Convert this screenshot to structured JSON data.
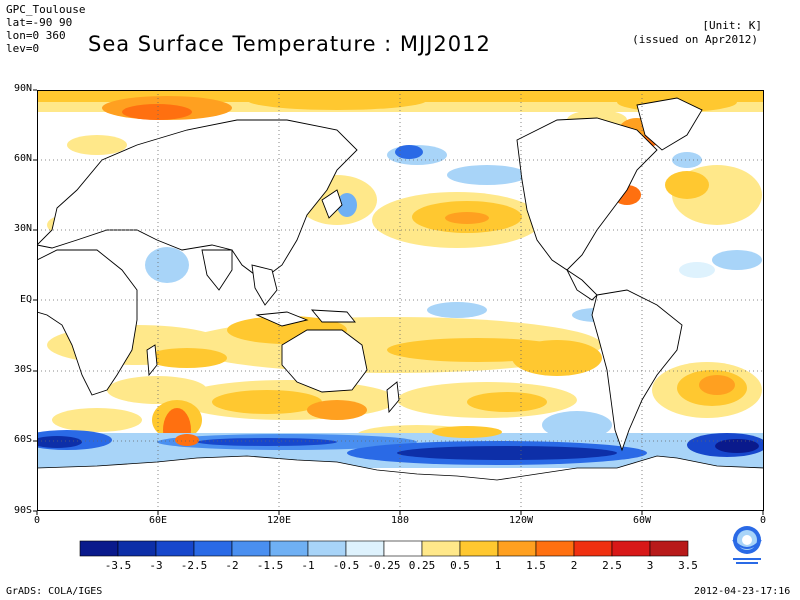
{
  "header": {
    "source": "GPC_Toulouse",
    "lat_range": "lat=-90 90",
    "lon_range": "lon=0 360",
    "lev": "lev=0",
    "title": "Sea Surface Temperature : MJJ2012",
    "unit": "[Unit: K]",
    "issued": "(issued on Apr2012)"
  },
  "map": {
    "lat_labels": [
      "90N",
      "60N",
      "30N",
      "EQ",
      "30S",
      "60S",
      "90S"
    ],
    "lon_labels": [
      "0",
      "60E",
      "120E",
      "180",
      "120W",
      "60W",
      "0"
    ]
  },
  "colorbar": {
    "labels": [
      "-3.5",
      "-3",
      "-2.5",
      "-2",
      "-1.5",
      "-1",
      "-0.5",
      "-0.25",
      "0.25",
      "0.5",
      "1",
      "1.5",
      "2",
      "2.5",
      "3",
      "3.5"
    ],
    "colors": [
      "#0a1a8c",
      "#0d2fa8",
      "#1747cc",
      "#2a6ae6",
      "#4a8ff0",
      "#6fb0f4",
      "#a8d4f8",
      "#def2fd",
      "#ffffff",
      "#ffe88a",
      "#ffc830",
      "#ffa020",
      "#ff7010",
      "#f03010",
      "#d81818",
      "#b81a1a"
    ]
  },
  "footer": {
    "left": "GrADS: COLA/IGES",
    "right": "2012-04-23-17:16"
  }
}
